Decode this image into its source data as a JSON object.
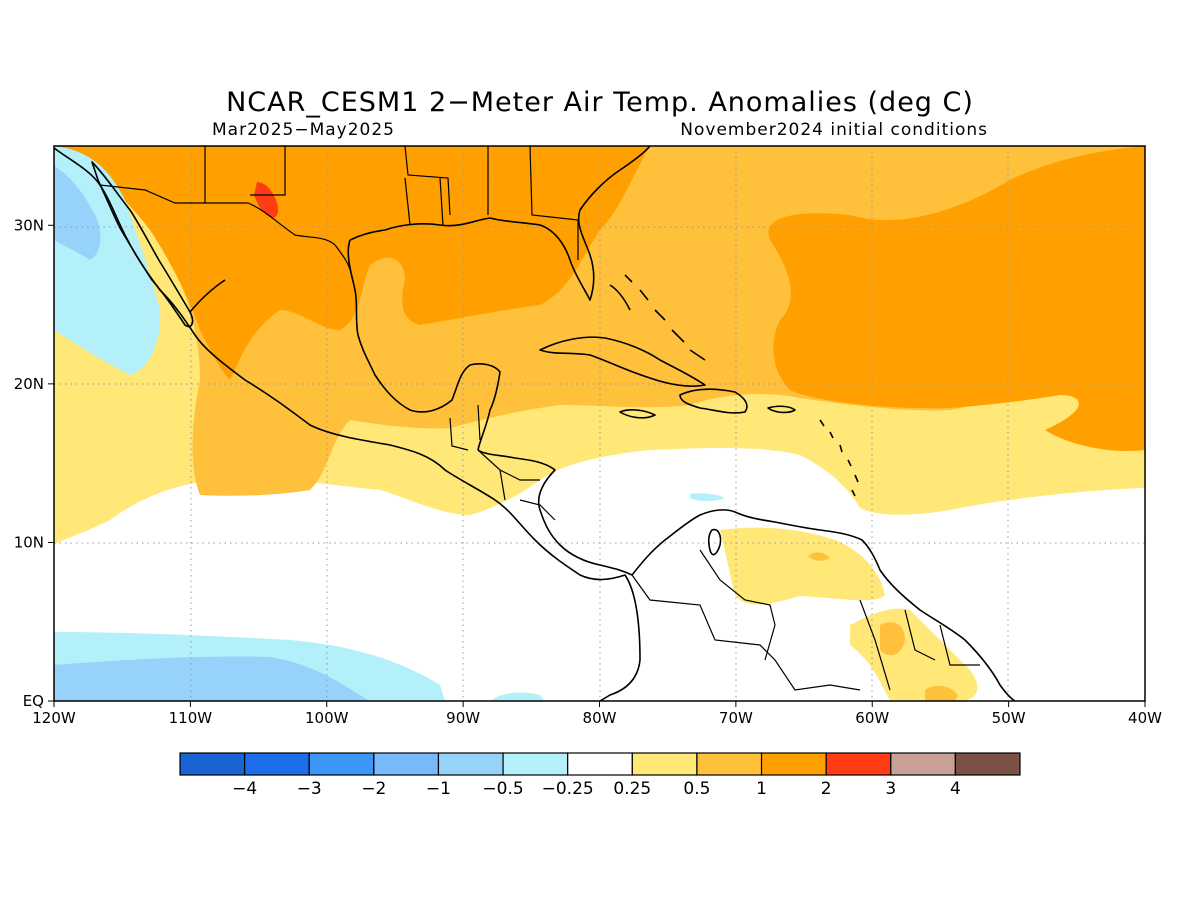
{
  "title": "NCAR_CESM1 2−Meter Air Temp. Anomalies (deg C)",
  "subtitle_left": "Mar2025−May2025",
  "subtitle_right": "November2024 initial conditions",
  "map": {
    "lon_range": [
      -120,
      -40
    ],
    "lat_range": [
      0,
      35
    ],
    "lon_ticks": [
      {
        "value": -120,
        "label": "120W"
      },
      {
        "value": -110,
        "label": "110W"
      },
      {
        "value": -100,
        "label": "100W"
      },
      {
        "value": -90,
        "label": "90W"
      },
      {
        "value": -80,
        "label": "80W"
      },
      {
        "value": -70,
        "label": "70W"
      },
      {
        "value": -60,
        "label": "60W"
      },
      {
        "value": -50,
        "label": "50W"
      },
      {
        "value": -40,
        "label": "40W"
      }
    ],
    "lat_ticks": [
      {
        "value": 0,
        "label": "EQ"
      },
      {
        "value": 10,
        "label": "10N"
      },
      {
        "value": 20,
        "label": "20N"
      },
      {
        "value": 30,
        "label": "30N"
      }
    ],
    "grid": true
  },
  "colorbar": {
    "colors": [
      "#1964d2",
      "#1e6eeb",
      "#3c96f5",
      "#78b9fa",
      "#96d2fa",
      "#b4f0fa",
      "#ffffff",
      "#ffe878",
      "#ffc03c",
      "#ffa000",
      "#ff3c14",
      "#c8a096",
      "#7d5046"
    ],
    "labels": [
      "−4",
      "−3",
      "−2",
      "−1",
      "−0.5",
      "−0.25",
      "0.25",
      "0.5",
      "1",
      "2",
      "3",
      "4"
    ]
  }
}
